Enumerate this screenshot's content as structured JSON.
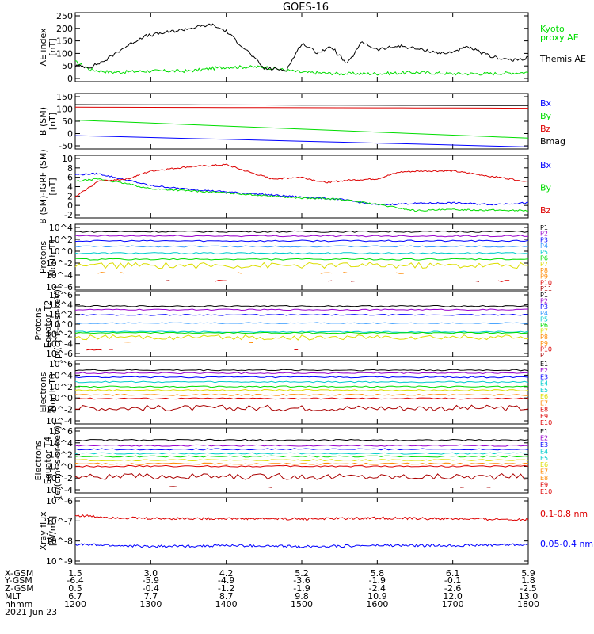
{
  "title": "GOES-16",
  "colors": {
    "black": "#000000",
    "blue": "#0000ff",
    "green": "#00dd00",
    "red": "#dd0000",
    "cyan": "#00cccc",
    "lightblue": "#3399ff",
    "yellow": "#dddd00",
    "orange": "#ff8800",
    "purple": "#9900cc",
    "darkred": "#aa0000"
  },
  "chart_data": [
    {
      "type": "line",
      "ylabel": [
        "AE index",
        "[nT]"
      ],
      "yticks": [
        "250",
        "200",
        "150",
        "100",
        "50",
        "0"
      ],
      "ylim": [
        0,
        260
      ],
      "series": [
        {
          "name": "Kyoto proxy AE",
          "color": "#00dd00",
          "x": [
            12.0,
            12.2,
            12.5,
            13.0,
            13.5,
            14.0,
            14.5,
            15.0,
            15.5,
            16.0,
            16.5,
            17.0,
            17.5,
            18.0
          ],
          "values": [
            75,
            45,
            35,
            40,
            40,
            55,
            55,
            35,
            30,
            30,
            35,
            30,
            30,
            35
          ]
        },
        {
          "name": "Themis AE",
          "color": "#000000",
          "x": [
            12.0,
            12.2,
            12.4,
            12.6,
            12.9,
            13.2,
            13.5,
            13.8,
            14.0,
            14.3,
            14.5,
            14.8,
            15.0,
            15.2,
            15.4,
            15.6,
            15.8,
            16.0,
            16.3,
            16.6,
            16.9,
            17.2,
            17.5,
            17.8,
            18.0
          ],
          "values": [
            60,
            55,
            80,
            120,
            170,
            185,
            200,
            215,
            190,
            110,
            50,
            45,
            145,
            110,
            130,
            65,
            150,
            120,
            135,
            120,
            105,
            130,
            95,
            80,
            90
          ]
        }
      ],
      "legend": [
        {
          "text": "Kyoto",
          "color": "#00dd00"
        },
        {
          "text": "proxy AE",
          "color": "#00dd00"
        },
        {
          "text": "Themis AE",
          "color": "#000000"
        }
      ]
    },
    {
      "type": "line",
      "ylabel": [
        "B (SM)",
        "[nT]"
      ],
      "yticks": [
        "150",
        "100",
        "50",
        "0",
        "-50"
      ],
      "ylim": [
        -60,
        155
      ],
      "series": [
        {
          "name": "Bmag",
          "color": "#000000",
          "x": [
            12,
            18
          ],
          "values": [
            112,
            108
          ]
        },
        {
          "name": "Bz",
          "color": "#dd0000",
          "x": [
            12,
            18
          ],
          "values": [
            102,
            98
          ]
        },
        {
          "name": "By",
          "color": "#00dd00",
          "x": [
            12,
            18
          ],
          "values": [
            52,
            -18
          ]
        },
        {
          "name": "Bx",
          "color": "#0000ff",
          "x": [
            12,
            18
          ],
          "values": [
            -8,
            -52
          ]
        }
      ],
      "legend": [
        {
          "text": "Bx",
          "color": "#0000ff"
        },
        {
          "text": "By",
          "color": "#00dd00"
        },
        {
          "text": "Bz",
          "color": "#dd0000"
        },
        {
          "text": "Bmag",
          "color": "#000000"
        }
      ]
    },
    {
      "type": "line",
      "ylabel": [
        "B (SM)-IGRF (SM)",
        "[nT]"
      ],
      "yticks": [
        "10",
        "8",
        "6",
        "4",
        "2",
        "0",
        "-2"
      ],
      "ylim": [
        -2,
        10
      ],
      "series": [
        {
          "name": "Bx",
          "color": "#0000ff",
          "x": [
            12.0,
            12.3,
            12.7,
            13.0,
            13.5,
            14.0,
            14.5,
            15.0,
            15.5,
            16.0,
            16.5,
            17.0,
            17.5,
            18.0
          ],
          "values": [
            6.3,
            6.5,
            5.2,
            4.2,
            3.5,
            3.0,
            2.5,
            2.0,
            1.6,
            0.5,
            0.8,
            0.9,
            0.6,
            0.9
          ]
        },
        {
          "name": "By",
          "color": "#00dd00",
          "x": [
            12.0,
            12.3,
            12.7,
            13.0,
            13.5,
            14.0,
            14.5,
            15.0,
            15.5,
            16.0,
            16.5,
            17.0,
            17.5,
            18.0
          ],
          "values": [
            5.0,
            5.5,
            4.5,
            3.6,
            3.2,
            2.8,
            2.3,
            1.8,
            1.6,
            0.6,
            -0.6,
            -0.4,
            -0.5,
            -0.6
          ]
        },
        {
          "name": "Bz",
          "color": "#dd0000",
          "x": [
            12.0,
            12.3,
            12.7,
            13.0,
            13.5,
            14.0,
            14.3,
            14.6,
            15.0,
            15.3,
            15.6,
            16.0,
            16.3,
            16.6,
            17.0,
            17.5,
            18.0
          ],
          "values": [
            2.0,
            5.0,
            5.5,
            7.0,
            7.8,
            8.2,
            6.8,
            5.5,
            5.8,
            4.8,
            5.2,
            5.5,
            6.8,
            7.0,
            7.0,
            6.0,
            5.0
          ]
        }
      ],
      "legend": [
        {
          "text": "Bx",
          "color": "#0000ff"
        },
        {
          "text": "By",
          "color": "#00dd00"
        },
        {
          "text": "Bz",
          "color": "#dd0000"
        }
      ]
    },
    {
      "type": "line",
      "ylog": true,
      "ylabel": [
        "Protons",
        "North T1"
      ],
      "yticks": [
        "10^4",
        "10^2",
        "10^0",
        "10^-2",
        "10^-4",
        "10^-6"
      ],
      "ylim": [
        -6.5,
        4.2
      ],
      "series": [
        {
          "name": "P1",
          "color": "#000000",
          "level": 3.0
        },
        {
          "name": "P2",
          "color": "#9900cc",
          "level": 2.3
        },
        {
          "name": "P3",
          "color": "#0000ff",
          "level": 1.5
        },
        {
          "name": "P4",
          "color": "#3399ff",
          "level": 0.6
        },
        {
          "name": "P5",
          "color": "#00cccc",
          "level": -0.5
        },
        {
          "name": "P6",
          "color": "#00dd00",
          "level": -1.5
        },
        {
          "name": "P7",
          "color": "#dddd00",
          "level": -2.5
        },
        {
          "name": "P8",
          "color": "#ff8800",
          "level": -3.7
        },
        {
          "name": "P9",
          "color": "#ff8800",
          "level": -3.7
        },
        {
          "name": "P10",
          "color": "#dd0000",
          "level": -5.0
        },
        {
          "name": "P11",
          "color": "#aa0000",
          "level": -5.0
        }
      ],
      "legend": [
        {
          "text": "P1",
          "color": "#000000"
        },
        {
          "text": "P2",
          "color": "#9900cc"
        },
        {
          "text": "P3",
          "color": "#0000ff"
        },
        {
          "text": "P4",
          "color": "#3399ff"
        },
        {
          "text": "P5",
          "color": "#00cccc"
        },
        {
          "text": "P6",
          "color": "#00dd00"
        },
        {
          "text": "P7",
          "color": "#dddd00"
        },
        {
          "text": "P8",
          "color": "#ff8800"
        },
        {
          "text": "P9",
          "color": "#ff8800"
        },
        {
          "text": "P10",
          "color": "#dd0000"
        },
        {
          "text": "P11",
          "color": "#aa0000"
        }
      ]
    },
    {
      "type": "line",
      "ylog": true,
      "ylabel": [
        "Protons",
        "Equator T2",
        "[p/(cm²-s-sr-keV)]"
      ],
      "yticks": [
        "10^6",
        "10^4",
        "10^2",
        "10^0",
        "10^-2",
        "10^-4",
        "10^-6"
      ],
      "ylim": [
        -6.3,
        6.3
      ],
      "series": [
        {
          "name": "P1",
          "color": "#000000",
          "level": 3.5
        },
        {
          "name": "P2",
          "color": "#9900cc",
          "level": 2.8
        },
        {
          "name": "P3",
          "color": "#0000ff",
          "level": 1.8
        },
        {
          "name": "P4",
          "color": "#3399ff",
          "level": 0.2
        },
        {
          "name": "P5",
          "color": "#00cccc",
          "level": -1.5
        },
        {
          "name": "P6",
          "color": "#00dd00",
          "level": -1.7
        },
        {
          "name": "P7",
          "color": "#dddd00",
          "level": -2.6
        },
        {
          "name": "P8",
          "color": "#ff8800",
          "level": -3.5
        },
        {
          "name": "P9",
          "color": "#ff8800",
          "level": -3.5
        },
        {
          "name": "P10",
          "color": "#dd0000",
          "level": -5.0
        },
        {
          "name": "P11",
          "color": "#aa0000",
          "level": -5.0
        }
      ],
      "legend": [
        {
          "text": "P1",
          "color": "#000000"
        },
        {
          "text": "P2",
          "color": "#9900cc"
        },
        {
          "text": "P3",
          "color": "#0000ff"
        },
        {
          "text": "P4",
          "color": "#3399ff"
        },
        {
          "text": "P5",
          "color": "#00cccc"
        },
        {
          "text": "P6",
          "color": "#00dd00"
        },
        {
          "text": "P7",
          "color": "#dddd00"
        },
        {
          "text": "P8",
          "color": "#ff8800"
        },
        {
          "text": "P9",
          "color": "#ff8800"
        },
        {
          "text": "P10",
          "color": "#dd0000"
        },
        {
          "text": "P11",
          "color": "#aa0000"
        }
      ]
    },
    {
      "type": "line",
      "ylog": true,
      "ylabel": [
        "Electrons",
        "North T3"
      ],
      "yticks": [
        "10^6",
        "10^4",
        "10^2",
        "10^0",
        "10^-2",
        "10^-4"
      ],
      "ylim": [
        -4.5,
        6.2
      ],
      "series": [
        {
          "name": "E1",
          "color": "#000000",
          "level": 4.6
        },
        {
          "name": "E2",
          "color": "#9900cc",
          "level": 4.1
        },
        {
          "name": "E3",
          "color": "#0000ff",
          "level": 3.4
        },
        {
          "name": "E4",
          "color": "#00cccc",
          "level": 2.6
        },
        {
          "name": "E5",
          "color": "#00dd00",
          "level": 1.8
        },
        {
          "name": "E6",
          "color": "#dddd00",
          "level": 1.2
        },
        {
          "name": "E7",
          "color": "#ff8800",
          "level": 0.4
        },
        {
          "name": "E8",
          "color": "#dd0000",
          "level": -0.2
        },
        {
          "name": "E9",
          "color": "#aa0000",
          "level": -1.8
        },
        {
          "name": "E10",
          "color": "#aa0000",
          "level": -3.5
        }
      ],
      "legend": [
        {
          "text": "E1",
          "color": "#000000"
        },
        {
          "text": "E2",
          "color": "#9900cc"
        },
        {
          "text": "E3",
          "color": "#0000ff"
        },
        {
          "text": "E4",
          "color": "#00cccc"
        },
        {
          "text": "E5",
          "color": "#00cccc"
        },
        {
          "text": "E6",
          "color": "#dddd00"
        },
        {
          "text": "E7",
          "color": "#ff8800"
        },
        {
          "text": "E8",
          "color": "#dd0000"
        },
        {
          "text": "E9",
          "color": "#dd0000"
        },
        {
          "text": "E10",
          "color": "#dd0000"
        }
      ]
    },
    {
      "type": "line",
      "ylog": true,
      "ylabel": [
        "Electrons",
        "Equator T4",
        "[e/(cm²-s-sr-keV)]"
      ],
      "yticks": [
        "10^6",
        "10^4",
        "10^2",
        "10^0",
        "10^-2",
        "10^-4"
      ],
      "ylim": [
        -4.5,
        6.2
      ],
      "series": [
        {
          "name": "E1",
          "color": "#000000",
          "level": 4.2
        },
        {
          "name": "E2",
          "color": "#9900cc",
          "level": 3.3
        },
        {
          "name": "E3",
          "color": "#0000ff",
          "level": 2.7
        },
        {
          "name": "E4",
          "color": "#00cccc",
          "level": 2.0
        },
        {
          "name": "E5",
          "color": "#00dd00",
          "level": 1.5
        },
        {
          "name": "E6",
          "color": "#dddd00",
          "level": 0.9
        },
        {
          "name": "E7",
          "color": "#ff8800",
          "level": 0.3
        },
        {
          "name": "E8",
          "color": "#dd0000",
          "level": -0.1
        },
        {
          "name": "E9",
          "color": "#aa0000",
          "level": -1.8
        },
        {
          "name": "E10",
          "color": "#aa0000",
          "level": -3.5
        }
      ],
      "legend": [
        {
          "text": "E1",
          "color": "#000000"
        },
        {
          "text": "E2",
          "color": "#9900cc"
        },
        {
          "text": "E3",
          "color": "#0000ff"
        },
        {
          "text": "E4",
          "color": "#00cccc"
        },
        {
          "text": "E5",
          "color": "#00cccc"
        },
        {
          "text": "E6",
          "color": "#dddd00"
        },
        {
          "text": "E7",
          "color": "#ff8800"
        },
        {
          "text": "E8",
          "color": "#ff8800"
        },
        {
          "text": "E9",
          "color": "#dd0000"
        },
        {
          "text": "E10",
          "color": "#dd0000"
        }
      ]
    },
    {
      "type": "line",
      "ylog": true,
      "ylabel": [
        "Xray flux",
        "[W/m²]"
      ],
      "yticks": [
        "10^-6",
        "10^-7",
        "10^-8",
        "10^-9"
      ],
      "ylim": [
        -9.1,
        -5.9
      ],
      "series": [
        {
          "name": "0.1-0.8 nm",
          "color": "#dd0000",
          "x": [
            12.0,
            12.5,
            13.0,
            14.0,
            15.0,
            16.0,
            17.0,
            18.0
          ],
          "values": [
            -6.75,
            -6.85,
            -6.9,
            -6.9,
            -6.92,
            -6.88,
            -6.92,
            -6.95
          ]
        },
        {
          "name": "0.05-0.4 nm",
          "color": "#0000ff",
          "x": [
            12.0,
            12.5,
            13.0,
            14.0,
            15.0,
            16.0,
            17.0,
            18.0
          ],
          "values": [
            -8.15,
            -8.2,
            -8.25,
            -8.2,
            -8.25,
            -8.2,
            -8.2,
            -8.15
          ]
        }
      ],
      "legend": [
        {
          "text": "0.1-0.8 nm",
          "color": "#dd0000"
        },
        {
          "text": "0.05-0.4 nm",
          "color": "#0000ff"
        }
      ]
    }
  ],
  "xaxis": {
    "row_labels": [
      "X-GSM",
      "Y-GSM",
      "Z-GSM",
      "MLT",
      "hhmm",
      "2021 Jun 23"
    ],
    "columns": [
      [
        "1.5",
        "-6.4",
        "0.5",
        "6.7",
        "1200"
      ],
      [
        "3.0",
        "-5.9",
        "-0.4",
        "7.7",
        "1300"
      ],
      [
        "4.2",
        "-4.9",
        "-1.2",
        "8.7",
        "1400"
      ],
      [
        "5.2",
        "-3.6",
        "-1.9",
        "9.8",
        "1500"
      ],
      [
        "5.8",
        "-1.9",
        "-2.4",
        "10.9",
        "1600"
      ],
      [
        "6.1",
        "-0.1",
        "-2.6",
        "12.0",
        "1700"
      ],
      [
        "5.9",
        "1.8",
        "-2.5",
        "13.0",
        "1800"
      ]
    ]
  }
}
